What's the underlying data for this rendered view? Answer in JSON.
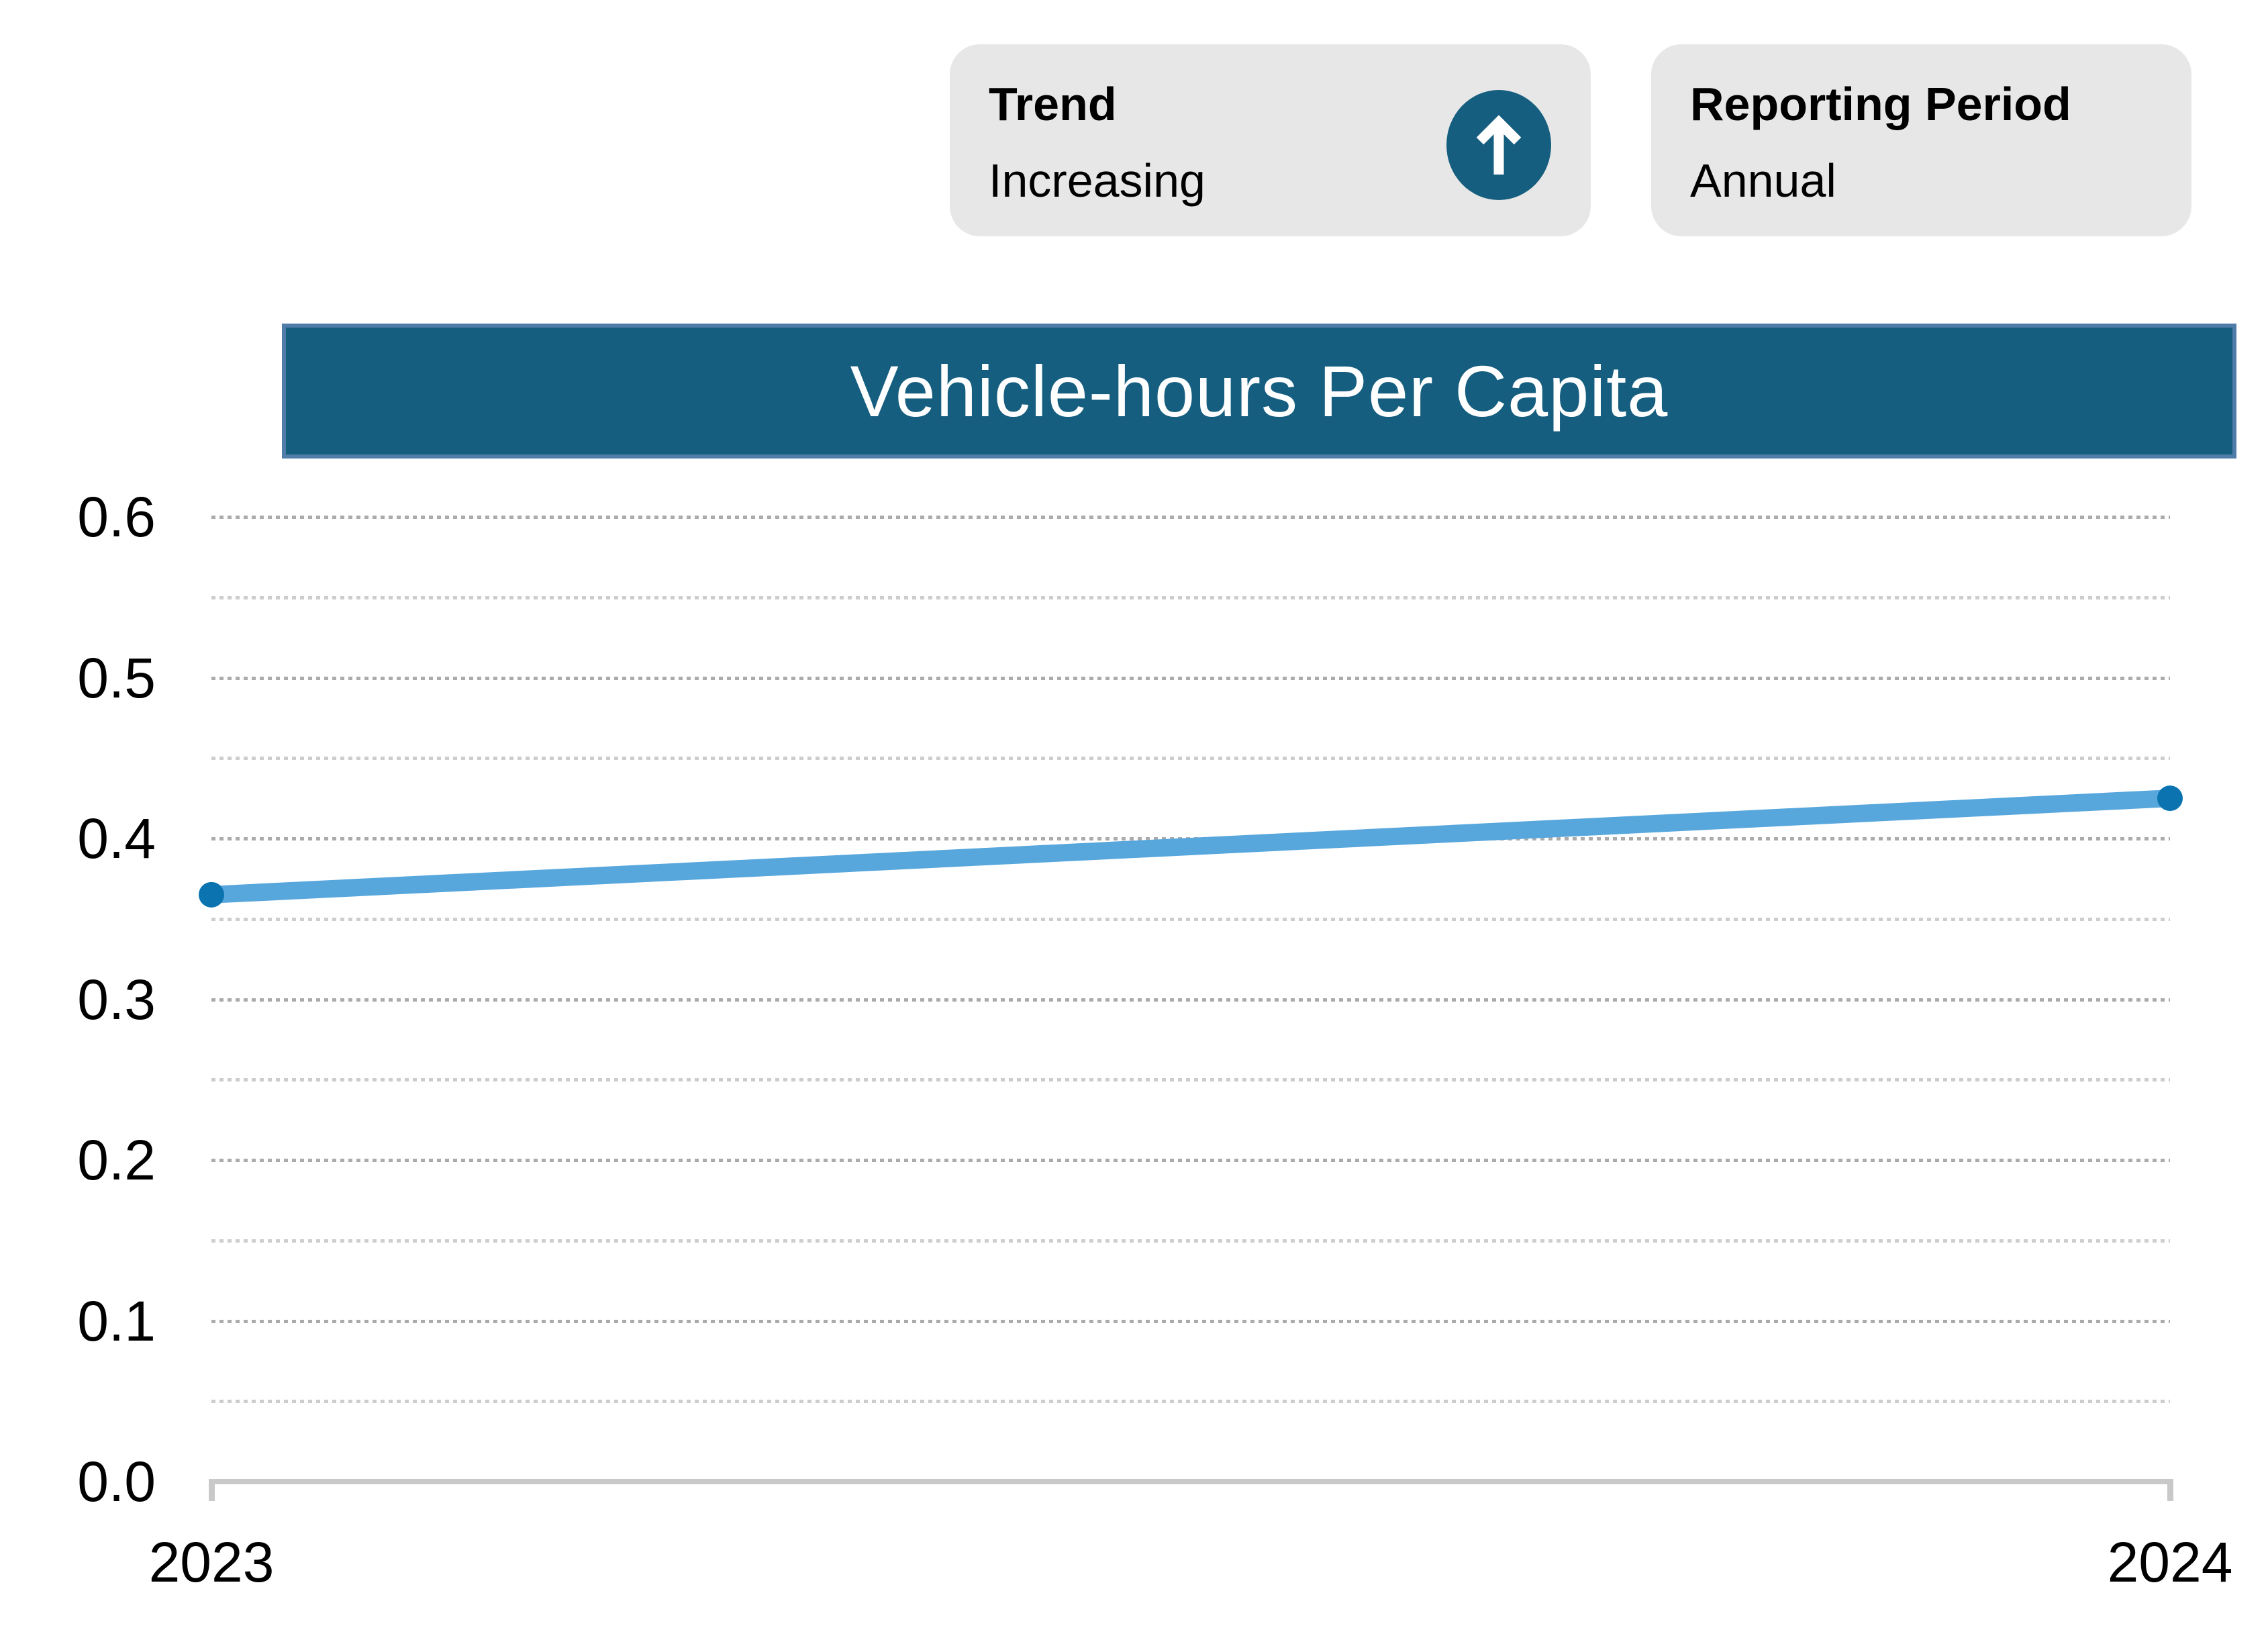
{
  "trend_card": {
    "label": "Trend",
    "value": "Increasing",
    "icon": "arrow-up"
  },
  "reporting_card": {
    "label": "Reporting Period",
    "value": "Annual"
  },
  "chart_data": {
    "type": "line",
    "title": "Vehicle-hours Per Capita",
    "x": [
      "2023",
      "2024"
    ],
    "series": [
      {
        "name": "Vehicle-hours Per Capita",
        "values": [
          0.365,
          0.425
        ]
      }
    ],
    "ylim": [
      0,
      0.6
    ],
    "yticks": [
      "0.0",
      "0.1",
      "0.2",
      "0.3",
      "0.4",
      "0.5",
      "0.6"
    ],
    "ytick_step": 0.1,
    "grid_step": 0.05,
    "grid": "dotted horizontal, minor every 0.05, major every 0.1",
    "legend": false,
    "xlabel": "",
    "ylabel": ""
  },
  "colors": {
    "accent_teal": "#155e7f",
    "banner_border": "#4f7ca8",
    "card_bg": "#e7e7e7",
    "line_blue": "#57a7dd",
    "point_blue": "#0b74b0",
    "grid_major": "#ababab",
    "grid_minor": "#cdcdcd",
    "axis_gray": "#c9c9c9"
  }
}
